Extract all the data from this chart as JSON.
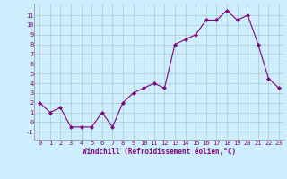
{
  "x": [
    0,
    1,
    2,
    3,
    4,
    5,
    6,
    7,
    8,
    9,
    10,
    11,
    12,
    13,
    14,
    15,
    16,
    17,
    18,
    19,
    20,
    21,
    22,
    23
  ],
  "y": [
    2,
    1,
    1.5,
    -0.5,
    -0.5,
    -0.5,
    1,
    -0.5,
    2,
    3,
    3.5,
    4,
    3.5,
    8,
    8.5,
    9,
    10.5,
    10.5,
    11.5,
    10.5,
    11,
    8,
    4.5,
    3.5
  ],
  "line_color": "#800080",
  "marker_color": "#800080",
  "bg_color": "#cceeff",
  "grid_color": "#aacccc",
  "xlabel": "Windchill (Refroidissement éolien,°C)",
  "ylabel_ticks": [
    -1,
    0,
    1,
    2,
    3,
    4,
    5,
    6,
    7,
    8,
    9,
    10,
    11
  ],
  "ylim": [
    -1.8,
    12.2
  ],
  "xlim": [
    -0.5,
    23.5
  ],
  "font_color": "#800080",
  "tick_fontsize": 5.0,
  "xlabel_fontsize": 5.5
}
